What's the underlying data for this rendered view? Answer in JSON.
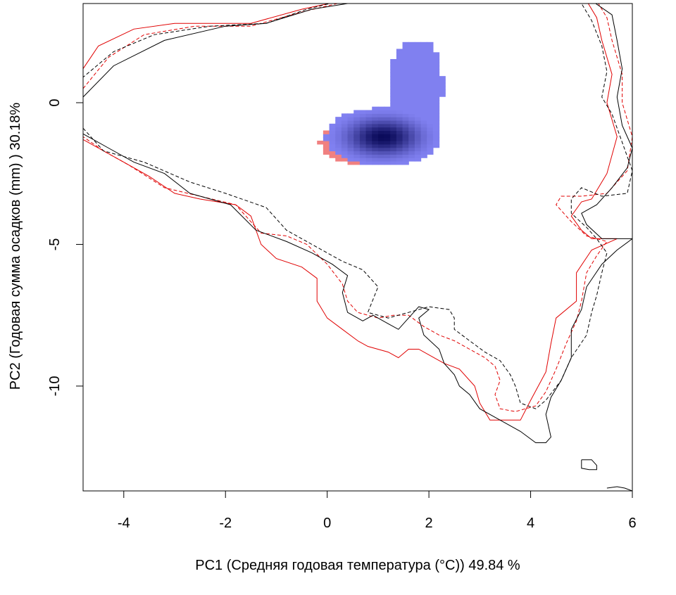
{
  "chart_data": {
    "type": "heatmap",
    "xlabel": "PC1 (Средняя годовая температура (°C)) 49.84 %",
    "ylabel": "PC2 (Годовая сумма осадков  (mm) ) 30.18%",
    "xlim": [
      -4.8,
      6.0
    ],
    "ylim": [
      -13.7,
      3.5
    ],
    "x_ticks": [
      -4,
      -2,
      0,
      2,
      4,
      6
    ],
    "y_ticks": [
      0,
      -5,
      -10
    ],
    "grid": false,
    "legend": "none",
    "colors": {
      "species_a_density": "#f08080",
      "species_b_density": "#8080f0",
      "overlap_peak": "#0a0a5a",
      "envelope_a": "#e00000",
      "envelope_b": "#000000"
    },
    "density_blobs": [
      {
        "name": "a",
        "center": [
          0.5,
          -1.4
        ],
        "spread": [
          0.35,
          0.4
        ],
        "color": "#f08080"
      },
      {
        "name": "b-core",
        "center": [
          1.1,
          -1.2
        ],
        "spread": [
          0.55,
          0.5
        ],
        "color": "#0a0a5a"
      },
      {
        "name": "b-arm",
        "center": [
          1.75,
          0.6
        ],
        "spread": [
          0.3,
          1.0
        ],
        "color": "#8080f0"
      }
    ],
    "envelopes": [
      {
        "name": "red-solid",
        "color": "#e00000",
        "dash": false,
        "points": [
          [
            -4.8,
            1.2
          ],
          [
            -4.5,
            2.0
          ],
          [
            -3.8,
            2.6
          ],
          [
            -3.0,
            2.8
          ],
          [
            -1.5,
            2.8
          ],
          [
            -0.5,
            3.3
          ],
          [
            0.3,
            3.6
          ],
          [
            5.1,
            3.6
          ],
          [
            5.3,
            3.0
          ],
          [
            5.4,
            2.2
          ],
          [
            5.6,
            1.0
          ],
          [
            5.5,
            0
          ],
          [
            5.7,
            -1.2
          ],
          [
            5.5,
            -2.5
          ],
          [
            5.2,
            -3.4
          ],
          [
            5.0,
            -3.5
          ],
          [
            4.8,
            -4.0
          ],
          [
            5.0,
            -4.5
          ],
          [
            5.2,
            -4.8
          ],
          [
            5.7,
            -4.8
          ],
          [
            5.2,
            -5.2
          ],
          [
            4.9,
            -6.0
          ],
          [
            4.9,
            -7.0
          ],
          [
            4.5,
            -7.6
          ],
          [
            4.4,
            -8.5
          ],
          [
            4.3,
            -9.5
          ],
          [
            4.0,
            -10.5
          ],
          [
            3.8,
            -11.2
          ],
          [
            3.2,
            -11.2
          ],
          [
            3.0,
            -10.6
          ],
          [
            2.9,
            -10.0
          ],
          [
            2.6,
            -9.4
          ],
          [
            2.3,
            -9.2
          ],
          [
            1.8,
            -8.7
          ],
          [
            1.6,
            -8.7
          ],
          [
            1.4,
            -9.0
          ],
          [
            1.2,
            -8.8
          ],
          [
            0.8,
            -8.6
          ],
          [
            0.6,
            -8.4
          ],
          [
            0.3,
            -8.0
          ],
          [
            0.0,
            -7.6
          ],
          [
            -0.2,
            -7.0
          ],
          [
            -0.2,
            -6.2
          ],
          [
            -0.5,
            -5.8
          ],
          [
            -1.0,
            -5.5
          ],
          [
            -1.3,
            -5.0
          ],
          [
            -1.5,
            -4.0
          ],
          [
            -1.8,
            -3.6
          ],
          [
            -2.5,
            -3.4
          ],
          [
            -3.0,
            -3.2
          ],
          [
            -3.5,
            -2.6
          ],
          [
            -4.0,
            -2.1
          ],
          [
            -4.5,
            -1.6
          ],
          [
            -4.8,
            -1.3
          ]
        ]
      },
      {
        "name": "red-dashed",
        "color": "#e00000",
        "dash": true,
        "points": [
          [
            -4.8,
            0.5
          ],
          [
            -4.3,
            1.6
          ],
          [
            -3.6,
            2.4
          ],
          [
            -2.6,
            2.7
          ],
          [
            -1.5,
            2.7
          ],
          [
            -0.5,
            3.2
          ],
          [
            0.2,
            3.5
          ],
          [
            5.3,
            3.6
          ],
          [
            5.5,
            3.0
          ],
          [
            5.6,
            2.2
          ],
          [
            5.8,
            1.0
          ],
          [
            5.8,
            0
          ],
          [
            6.0,
            -1.2
          ],
          [
            5.9,
            -2.4
          ],
          [
            5.5,
            -3.2
          ],
          [
            5.0,
            -3.3
          ],
          [
            4.6,
            -3.3
          ],
          [
            4.5,
            -3.6
          ],
          [
            4.8,
            -4.2
          ],
          [
            5.1,
            -4.7
          ],
          [
            5.5,
            -4.9
          ],
          [
            5.3,
            -5.4
          ],
          [
            5.1,
            -6.0
          ],
          [
            5.0,
            -7.0
          ],
          [
            4.9,
            -7.7
          ],
          [
            4.7,
            -8.5
          ],
          [
            4.5,
            -9.4
          ],
          [
            4.3,
            -10.2
          ],
          [
            4.1,
            -10.7
          ],
          [
            3.7,
            -10.9
          ],
          [
            3.4,
            -10.8
          ],
          [
            3.3,
            -10.3
          ],
          [
            3.4,
            -9.8
          ],
          [
            3.3,
            -9.3
          ],
          [
            3.1,
            -9.0
          ],
          [
            2.8,
            -8.7
          ],
          [
            2.5,
            -8.4
          ],
          [
            2.2,
            -8.2
          ],
          [
            1.9,
            -7.9
          ],
          [
            1.6,
            -7.5
          ],
          [
            1.3,
            -7.5
          ],
          [
            1.0,
            -7.6
          ],
          [
            0.6,
            -7.4
          ],
          [
            0.4,
            -7.0
          ],
          [
            0.3,
            -6.4
          ],
          [
            0.0,
            -5.7
          ],
          [
            -0.4,
            -5.0
          ],
          [
            -0.8,
            -4.7
          ],
          [
            -1.3,
            -4.6
          ],
          [
            -1.8,
            -3.6
          ],
          [
            -2.5,
            -3.3
          ],
          [
            -3.2,
            -3.0
          ],
          [
            -3.9,
            -2.2
          ],
          [
            -4.4,
            -1.7
          ],
          [
            -4.8,
            -1.2
          ]
        ]
      },
      {
        "name": "black-solid",
        "color": "#000000",
        "dash": false,
        "points": [
          [
            -4.8,
            0.2
          ],
          [
            -4.2,
            1.3
          ],
          [
            -3.2,
            2.2
          ],
          [
            -2.0,
            2.7
          ],
          [
            -1.2,
            2.8
          ],
          [
            -0.3,
            3.3
          ],
          [
            0.4,
            3.5
          ],
          [
            5.2,
            3.6
          ],
          [
            5.6,
            3.1
          ],
          [
            5.7,
            2.2
          ],
          [
            5.8,
            1.2
          ],
          [
            5.7,
            0.2
          ],
          [
            5.8,
            -0.8
          ],
          [
            6.0,
            -1.6
          ],
          [
            5.9,
            -2.3
          ],
          [
            5.6,
            -3.0
          ],
          [
            5.3,
            -3.6
          ],
          [
            5.0,
            -3.9
          ],
          [
            5.1,
            -4.3
          ],
          [
            5.4,
            -4.8
          ],
          [
            5.8,
            -4.8
          ],
          [
            6.0,
            -4.8
          ],
          [
            5.7,
            -5.2
          ],
          [
            5.4,
            -5.7
          ],
          [
            5.1,
            -6.5
          ],
          [
            5.0,
            -7.3
          ],
          [
            4.8,
            -8.0
          ],
          [
            4.8,
            -9.0
          ],
          [
            4.6,
            -9.8
          ],
          [
            4.4,
            -10.4
          ],
          [
            4.3,
            -11.0
          ],
          [
            4.4,
            -11.8
          ],
          [
            4.3,
            -12.0
          ],
          [
            4.1,
            -12.0
          ],
          [
            3.8,
            -11.6
          ],
          [
            3.4,
            -11.2
          ],
          [
            3.0,
            -10.8
          ],
          [
            2.8,
            -10.3
          ],
          [
            2.6,
            -10.0
          ],
          [
            2.5,
            -9.6
          ],
          [
            2.3,
            -9.2
          ],
          [
            2.2,
            -8.7
          ],
          [
            1.9,
            -8.2
          ],
          [
            1.8,
            -7.6
          ],
          [
            2.0,
            -7.3
          ],
          [
            1.8,
            -7.2
          ],
          [
            1.6,
            -7.6
          ],
          [
            1.4,
            -8.0
          ],
          [
            1.2,
            -7.8
          ],
          [
            0.9,
            -7.5
          ],
          [
            0.7,
            -7.7
          ],
          [
            0.4,
            -7.4
          ],
          [
            0.3,
            -6.7
          ],
          [
            0.4,
            -6.1
          ],
          [
            0.1,
            -5.7
          ],
          [
            -0.3,
            -5.3
          ],
          [
            -0.8,
            -4.9
          ],
          [
            -1.4,
            -4.5
          ],
          [
            -1.9,
            -3.6
          ],
          [
            -2.7,
            -3.2
          ],
          [
            -3.2,
            -2.5
          ],
          [
            -3.8,
            -2.1
          ],
          [
            -4.3,
            -1.6
          ],
          [
            -4.8,
            -1.1
          ]
        ]
      },
      {
        "name": "black-dashed",
        "color": "#000000",
        "dash": true,
        "points": [
          [
            -4.8,
            -0.9
          ],
          [
            -4.4,
            -1.7
          ],
          [
            -3.6,
            -2.1
          ],
          [
            -2.7,
            -2.8
          ],
          [
            -2.0,
            -3.2
          ],
          [
            -1.2,
            -3.7
          ],
          [
            -0.8,
            -4.5
          ],
          [
            -0.3,
            -5.0
          ],
          [
            0.3,
            -5.6
          ],
          [
            0.7,
            -5.9
          ],
          [
            1.0,
            -6.5
          ],
          [
            0.8,
            -7.4
          ],
          [
            1.2,
            -7.6
          ],
          [
            1.6,
            -7.4
          ],
          [
            2.0,
            -7.2
          ],
          [
            2.4,
            -7.3
          ],
          [
            2.5,
            -7.6
          ],
          [
            2.5,
            -8.0
          ],
          [
            2.8,
            -8.4
          ],
          [
            3.1,
            -8.8
          ],
          [
            3.4,
            -9.1
          ],
          [
            3.6,
            -9.6
          ],
          [
            3.7,
            -10.0
          ],
          [
            3.8,
            -10.6
          ],
          [
            4.1,
            -10.8
          ],
          [
            4.3,
            -10.5
          ],
          [
            4.6,
            -9.8
          ],
          [
            4.8,
            -9.0
          ],
          [
            5.1,
            -8.2
          ],
          [
            5.2,
            -7.4
          ],
          [
            5.3,
            -6.8
          ],
          [
            5.4,
            -6.0
          ],
          [
            5.5,
            -5.3
          ],
          [
            5.3,
            -4.8
          ],
          [
            5.1,
            -4.4
          ],
          [
            4.8,
            -3.9
          ],
          [
            4.8,
            -3.4
          ],
          [
            5.0,
            -3.0
          ],
          [
            5.4,
            -3.3
          ],
          [
            5.9,
            -3.2
          ],
          [
            6.0,
            -2.4
          ],
          [
            5.8,
            -1.4
          ],
          [
            5.6,
            -0.4
          ],
          [
            5.4,
            0.2
          ],
          [
            5.5,
            1.1
          ],
          [
            5.4,
            2.0
          ],
          [
            5.2,
            2.9
          ],
          [
            5.0,
            3.5
          ],
          [
            0.5,
            3.7
          ],
          [
            -0.4,
            3.3
          ],
          [
            -1.2,
            2.8
          ],
          [
            -2.3,
            2.7
          ],
          [
            -3.4,
            2.4
          ],
          [
            -4.2,
            1.8
          ],
          [
            -4.8,
            0.9
          ]
        ]
      },
      {
        "name": "black-small-1",
        "color": "#000000",
        "dash": false,
        "points": [
          [
            5.0,
            -12.6
          ],
          [
            5.2,
            -12.6
          ],
          [
            5.3,
            -12.8
          ],
          [
            5.3,
            -12.95
          ],
          [
            5.15,
            -12.95
          ],
          [
            5.0,
            -12.9
          ],
          [
            5.0,
            -12.6
          ]
        ]
      },
      {
        "name": "black-small-2",
        "color": "#000000",
        "dash": false,
        "points": [
          [
            5.5,
            -13.6
          ],
          [
            5.7,
            -13.55
          ],
          [
            5.85,
            -13.6
          ],
          [
            6.0,
            -13.7
          ]
        ]
      }
    ]
  }
}
